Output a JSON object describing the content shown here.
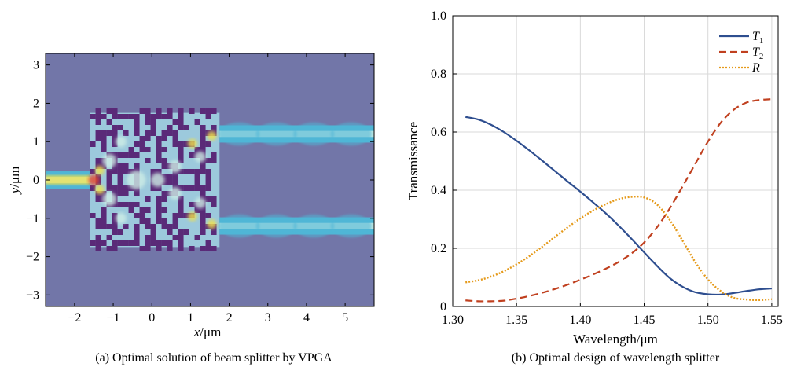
{
  "chart_data": [
    {
      "type": "heatmap",
      "caption": "(a) Optimal solution of beam splitter by VPGA",
      "xlabel_var": "x",
      "xlabel_unit": "/μm",
      "ylabel_var": "y",
      "ylabel_unit": "/μm",
      "xlim": [
        -2.75,
        5.75
      ],
      "ylim": [
        -3.3,
        3.3
      ],
      "xticks": [
        "−2",
        "−1",
        "0",
        "1",
        "2",
        "3",
        "4",
        "5"
      ],
      "xtick_values": [
        -2,
        -1,
        0,
        1,
        2,
        3,
        4,
        5
      ],
      "yticks": [
        "−3",
        "−2",
        "−1",
        "0",
        "1",
        "2",
        "3"
      ],
      "ytick_values": [
        -3,
        -2,
        -1,
        0,
        1,
        2,
        3
      ],
      "design_region": {
        "x": [
          -1.6,
          1.75
        ],
        "y": [
          -1.75,
          1.75
        ]
      },
      "waveguides": [
        {
          "name": "input",
          "x": [
            -2.75,
            -1.6
          ],
          "y_center": 0,
          "width": 0.45
        },
        {
          "name": "output_upper",
          "x": [
            1.75,
            5.75
          ],
          "y_center": 1.2,
          "width": 0.45
        },
        {
          "name": "output_lower",
          "x": [
            1.75,
            5.75
          ],
          "y_center": -1.2,
          "width": 0.45
        }
      ],
      "colors": {
        "background": "#7276a8",
        "pixel": "#5a2a78",
        "field_low": "#4fb6d6",
        "field_mid": "#cfeee6",
        "field_high": "#f2e24b",
        "field_peak": "#e8462a"
      }
    },
    {
      "type": "line",
      "caption": "(b) Optimal design of wavelength splitter",
      "xlabel": "Wavelength/μm",
      "ylabel": "Transmissance",
      "xlim": [
        1.3,
        1.555
      ],
      "ylim": [
        0,
        1.0
      ],
      "xticks": [
        "1.30",
        "1.35",
        "1.40",
        "1.45",
        "1.50",
        "1.55"
      ],
      "xtick_values": [
        1.3,
        1.35,
        1.4,
        1.45,
        1.5,
        1.55
      ],
      "yticks": [
        "0",
        "0.2",
        "0.4",
        "0.6",
        "0.8",
        "1.0"
      ],
      "ytick_values": [
        0,
        0.2,
        0.4,
        0.6,
        0.8,
        1.0
      ],
      "grid": true,
      "legend_position": "top-right",
      "x": [
        1.31,
        1.32,
        1.33,
        1.34,
        1.35,
        1.36,
        1.37,
        1.38,
        1.39,
        1.4,
        1.41,
        1.42,
        1.43,
        1.44,
        1.45,
        1.46,
        1.47,
        1.48,
        1.49,
        1.5,
        1.51,
        1.52,
        1.53,
        1.54,
        1.55
      ],
      "series": [
        {
          "name": "T",
          "subscript": "1",
          "style": "solid",
          "color": "#2e4e8f",
          "values": [
            0.652,
            0.643,
            0.625,
            0.6,
            0.57,
            0.537,
            0.502,
            0.466,
            0.43,
            0.395,
            0.358,
            0.32,
            0.278,
            0.233,
            0.186,
            0.14,
            0.098,
            0.068,
            0.049,
            0.042,
            0.041,
            0.046,
            0.053,
            0.059,
            0.062
          ]
        },
        {
          "name": "T",
          "subscript": "2",
          "style": "dashed",
          "color": "#c0401f",
          "values": [
            0.021,
            0.018,
            0.018,
            0.02,
            0.027,
            0.036,
            0.047,
            0.06,
            0.075,
            0.092,
            0.11,
            0.13,
            0.153,
            0.182,
            0.22,
            0.272,
            0.337,
            0.412,
            0.49,
            0.567,
            0.632,
            0.676,
            0.701,
            0.71,
            0.713
          ]
        },
        {
          "name": "R",
          "subscript": "",
          "style": "dotted",
          "color": "#e59a1a",
          "values": [
            0.083,
            0.09,
            0.103,
            0.121,
            0.145,
            0.173,
            0.205,
            0.239,
            0.272,
            0.303,
            0.33,
            0.352,
            0.369,
            0.377,
            0.375,
            0.351,
            0.298,
            0.227,
            0.153,
            0.093,
            0.053,
            0.03,
            0.024,
            0.022,
            0.025
          ]
        }
      ]
    }
  ]
}
